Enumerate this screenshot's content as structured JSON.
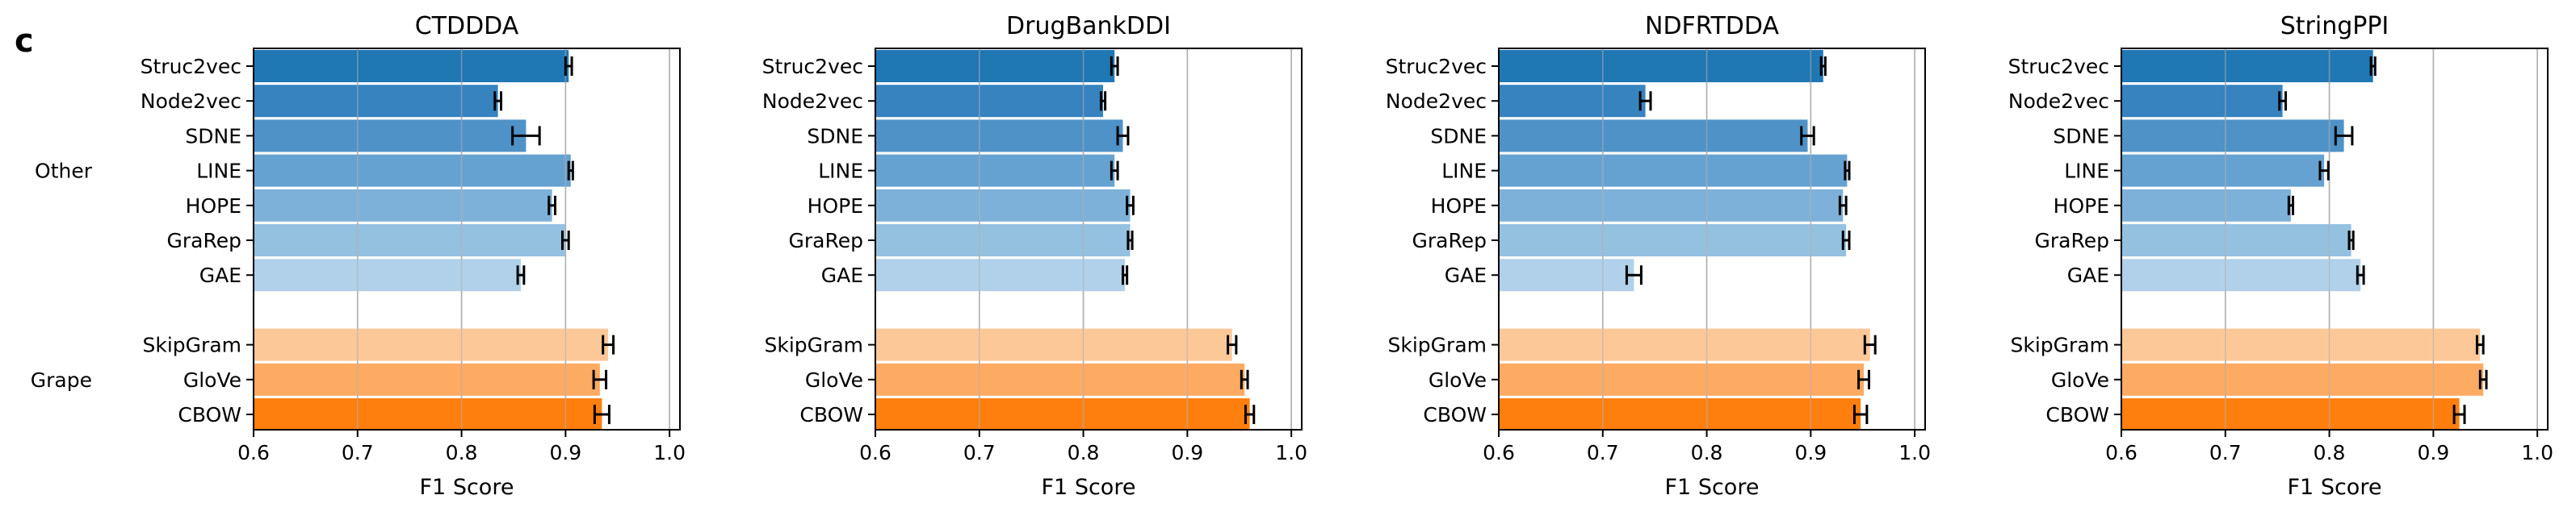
{
  "panel_label": "c",
  "colors": {
    "other": [
      "#1f77b4",
      "#3783c0",
      "#4f92c8",
      "#66a2d1",
      "#7db1d9",
      "#95c1e1",
      "#b0d1e9"
    ],
    "grape": [
      "#fdc898",
      "#fdaa62",
      "#ff7f0e"
    ],
    "grid": "#b0b0b0",
    "error": "#000000"
  },
  "chart_data": [
    {
      "type": "bar",
      "orientation": "horizontal",
      "title": "CTDDDA",
      "xlabel": "F1 Score",
      "xlim": [
        0.6,
        1.01
      ],
      "xticks": [
        "0.6",
        "0.7",
        "0.8",
        "0.9",
        "1.0"
      ],
      "grid": "vertical",
      "groups": [
        {
          "name": "Other",
          "categories": [
            "Struc2vec",
            "Node2vec",
            "SDNE",
            "LINE",
            "HOPE",
            "GraRep",
            "GAE"
          ]
        },
        {
          "name": "Grape",
          "categories": [
            "SkipGram",
            "GloVe",
            "CBOW"
          ]
        }
      ],
      "values": [
        0.903,
        0.835,
        0.862,
        0.905,
        0.887,
        0.9,
        0.857,
        0.941,
        0.933,
        0.935
      ],
      "errors": [
        0.003,
        0.003,
        0.013,
        0.002,
        0.003,
        0.003,
        0.003,
        0.005,
        0.006,
        0.007
      ]
    },
    {
      "type": "bar",
      "orientation": "horizontal",
      "title": "DrugBankDDI",
      "xlabel": "F1 Score",
      "xlim": [
        0.6,
        1.01
      ],
      "xticks": [
        "0.6",
        "0.7",
        "0.8",
        "0.9",
        "1.0"
      ],
      "grid": "vertical",
      "groups": [
        {
          "name": "",
          "categories": [
            "Struc2vec",
            "Node2vec",
            "SDNE",
            "LINE",
            "HOPE",
            "GraRep",
            "GAE"
          ]
        },
        {
          "name": "",
          "categories": [
            "SkipGram",
            "GloVe",
            "CBOW"
          ]
        }
      ],
      "values": [
        0.83,
        0.819,
        0.838,
        0.83,
        0.845,
        0.845,
        0.84,
        0.943,
        0.955,
        0.96
      ],
      "errors": [
        0.003,
        0.002,
        0.005,
        0.003,
        0.003,
        0.002,
        0.002,
        0.004,
        0.003,
        0.004
      ]
    },
    {
      "type": "bar",
      "orientation": "horizontal",
      "title": "NDFRTDDA",
      "xlabel": "F1 Score",
      "xlim": [
        0.6,
        1.01
      ],
      "xticks": [
        "0.6",
        "0.7",
        "0.8",
        "0.9",
        "1.0"
      ],
      "grid": "vertical",
      "groups": [
        {
          "name": "",
          "categories": [
            "Struc2vec",
            "Node2vec",
            "SDNE",
            "LINE",
            "HOPE",
            "GraRep",
            "GAE"
          ]
        },
        {
          "name": "",
          "categories": [
            "SkipGram",
            "GloVe",
            "CBOW"
          ]
        }
      ],
      "values": [
        0.912,
        0.741,
        0.897,
        0.935,
        0.931,
        0.934,
        0.73,
        0.957,
        0.951,
        0.948
      ],
      "errors": [
        0.002,
        0.005,
        0.006,
        0.002,
        0.003,
        0.003,
        0.007,
        0.005,
        0.005,
        0.006
      ]
    },
    {
      "type": "bar",
      "orientation": "horizontal",
      "title": "StringPPI",
      "xlabel": "F1 Score",
      "xlim": [
        0.6,
        1.01
      ],
      "xticks": [
        "0.6",
        "0.7",
        "0.8",
        "0.9",
        "1.0"
      ],
      "grid": "vertical",
      "groups": [
        {
          "name": "",
          "categories": [
            "Struc2vec",
            "Node2vec",
            "SDNE",
            "LINE",
            "HOPE",
            "GraRep",
            "GAE"
          ]
        },
        {
          "name": "",
          "categories": [
            "SkipGram",
            "GloVe",
            "CBOW"
          ]
        }
      ],
      "values": [
        0.842,
        0.755,
        0.814,
        0.795,
        0.763,
        0.821,
        0.83,
        0.945,
        0.948,
        0.925
      ],
      "errors": [
        0.002,
        0.003,
        0.008,
        0.004,
        0.002,
        0.002,
        0.003,
        0.003,
        0.003,
        0.005
      ]
    }
  ]
}
